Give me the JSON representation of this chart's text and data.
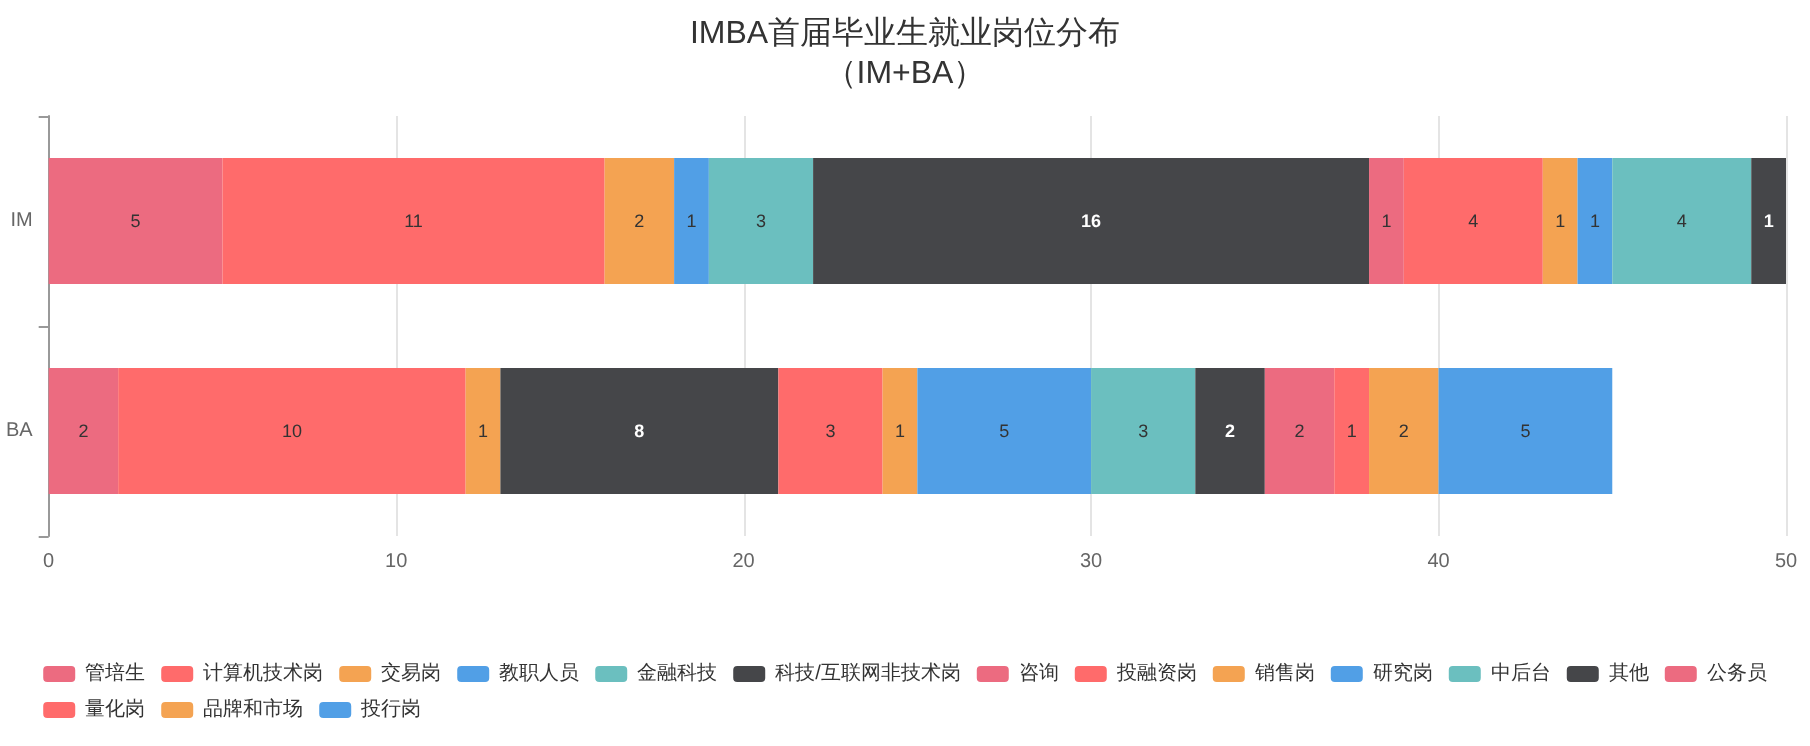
{
  "chart_data": {
    "type": "bar",
    "title": "IMBA首届毕业生就业岗位分布",
    "subtitle": "（IM+BA）",
    "orientation": "horizontal",
    "stacked": true,
    "categories": [
      "IM",
      "BA"
    ],
    "xlim": [
      0,
      50
    ],
    "xticks": [
      0,
      10,
      20,
      30,
      40,
      50
    ],
    "grid": "x",
    "legend": "bottom",
    "data_labels": true,
    "series": [
      {
        "name": "管培生",
        "color": "#ec6b80",
        "values": [
          5,
          2
        ]
      },
      {
        "name": "计算机技术岗",
        "color": "#ff6b6b",
        "values": [
          11,
          10
        ]
      },
      {
        "name": "交易岗",
        "color": "#f4a352",
        "values": [
          2,
          1
        ]
      },
      {
        "name": "教职人员",
        "color": "#519fe6",
        "values": [
          1,
          null
        ]
      },
      {
        "name": "金融科技",
        "color": "#6bbfbf",
        "values": [
          3,
          null
        ]
      },
      {
        "name": "科技/互联网非技术岗",
        "color": "#454649",
        "values": [
          16,
          8
        ]
      },
      {
        "name": "咨询",
        "color": "#ec6b80",
        "values": [
          1,
          null
        ]
      },
      {
        "name": "投融资岗",
        "color": "#ff6b6b",
        "values": [
          4,
          3
        ]
      },
      {
        "name": "销售岗",
        "color": "#f4a352",
        "values": [
          1,
          1
        ]
      },
      {
        "name": "研究岗",
        "color": "#519fe6",
        "values": [
          1,
          5
        ]
      },
      {
        "name": "中后台",
        "color": "#6bbfbf",
        "values": [
          4,
          3
        ]
      },
      {
        "name": "其他",
        "color": "#454649",
        "values": [
          1,
          2
        ]
      },
      {
        "name": "公务员",
        "color": "#ec6b80",
        "values": [
          null,
          2
        ]
      },
      {
        "name": "量化岗",
        "color": "#ff6b6b",
        "values": [
          null,
          1
        ]
      },
      {
        "name": "品牌和市场",
        "color": "#f4a352",
        "values": [
          null,
          2
        ]
      },
      {
        "name": "投行岗",
        "color": "#519fe6",
        "values": [
          null,
          5
        ]
      }
    ]
  }
}
